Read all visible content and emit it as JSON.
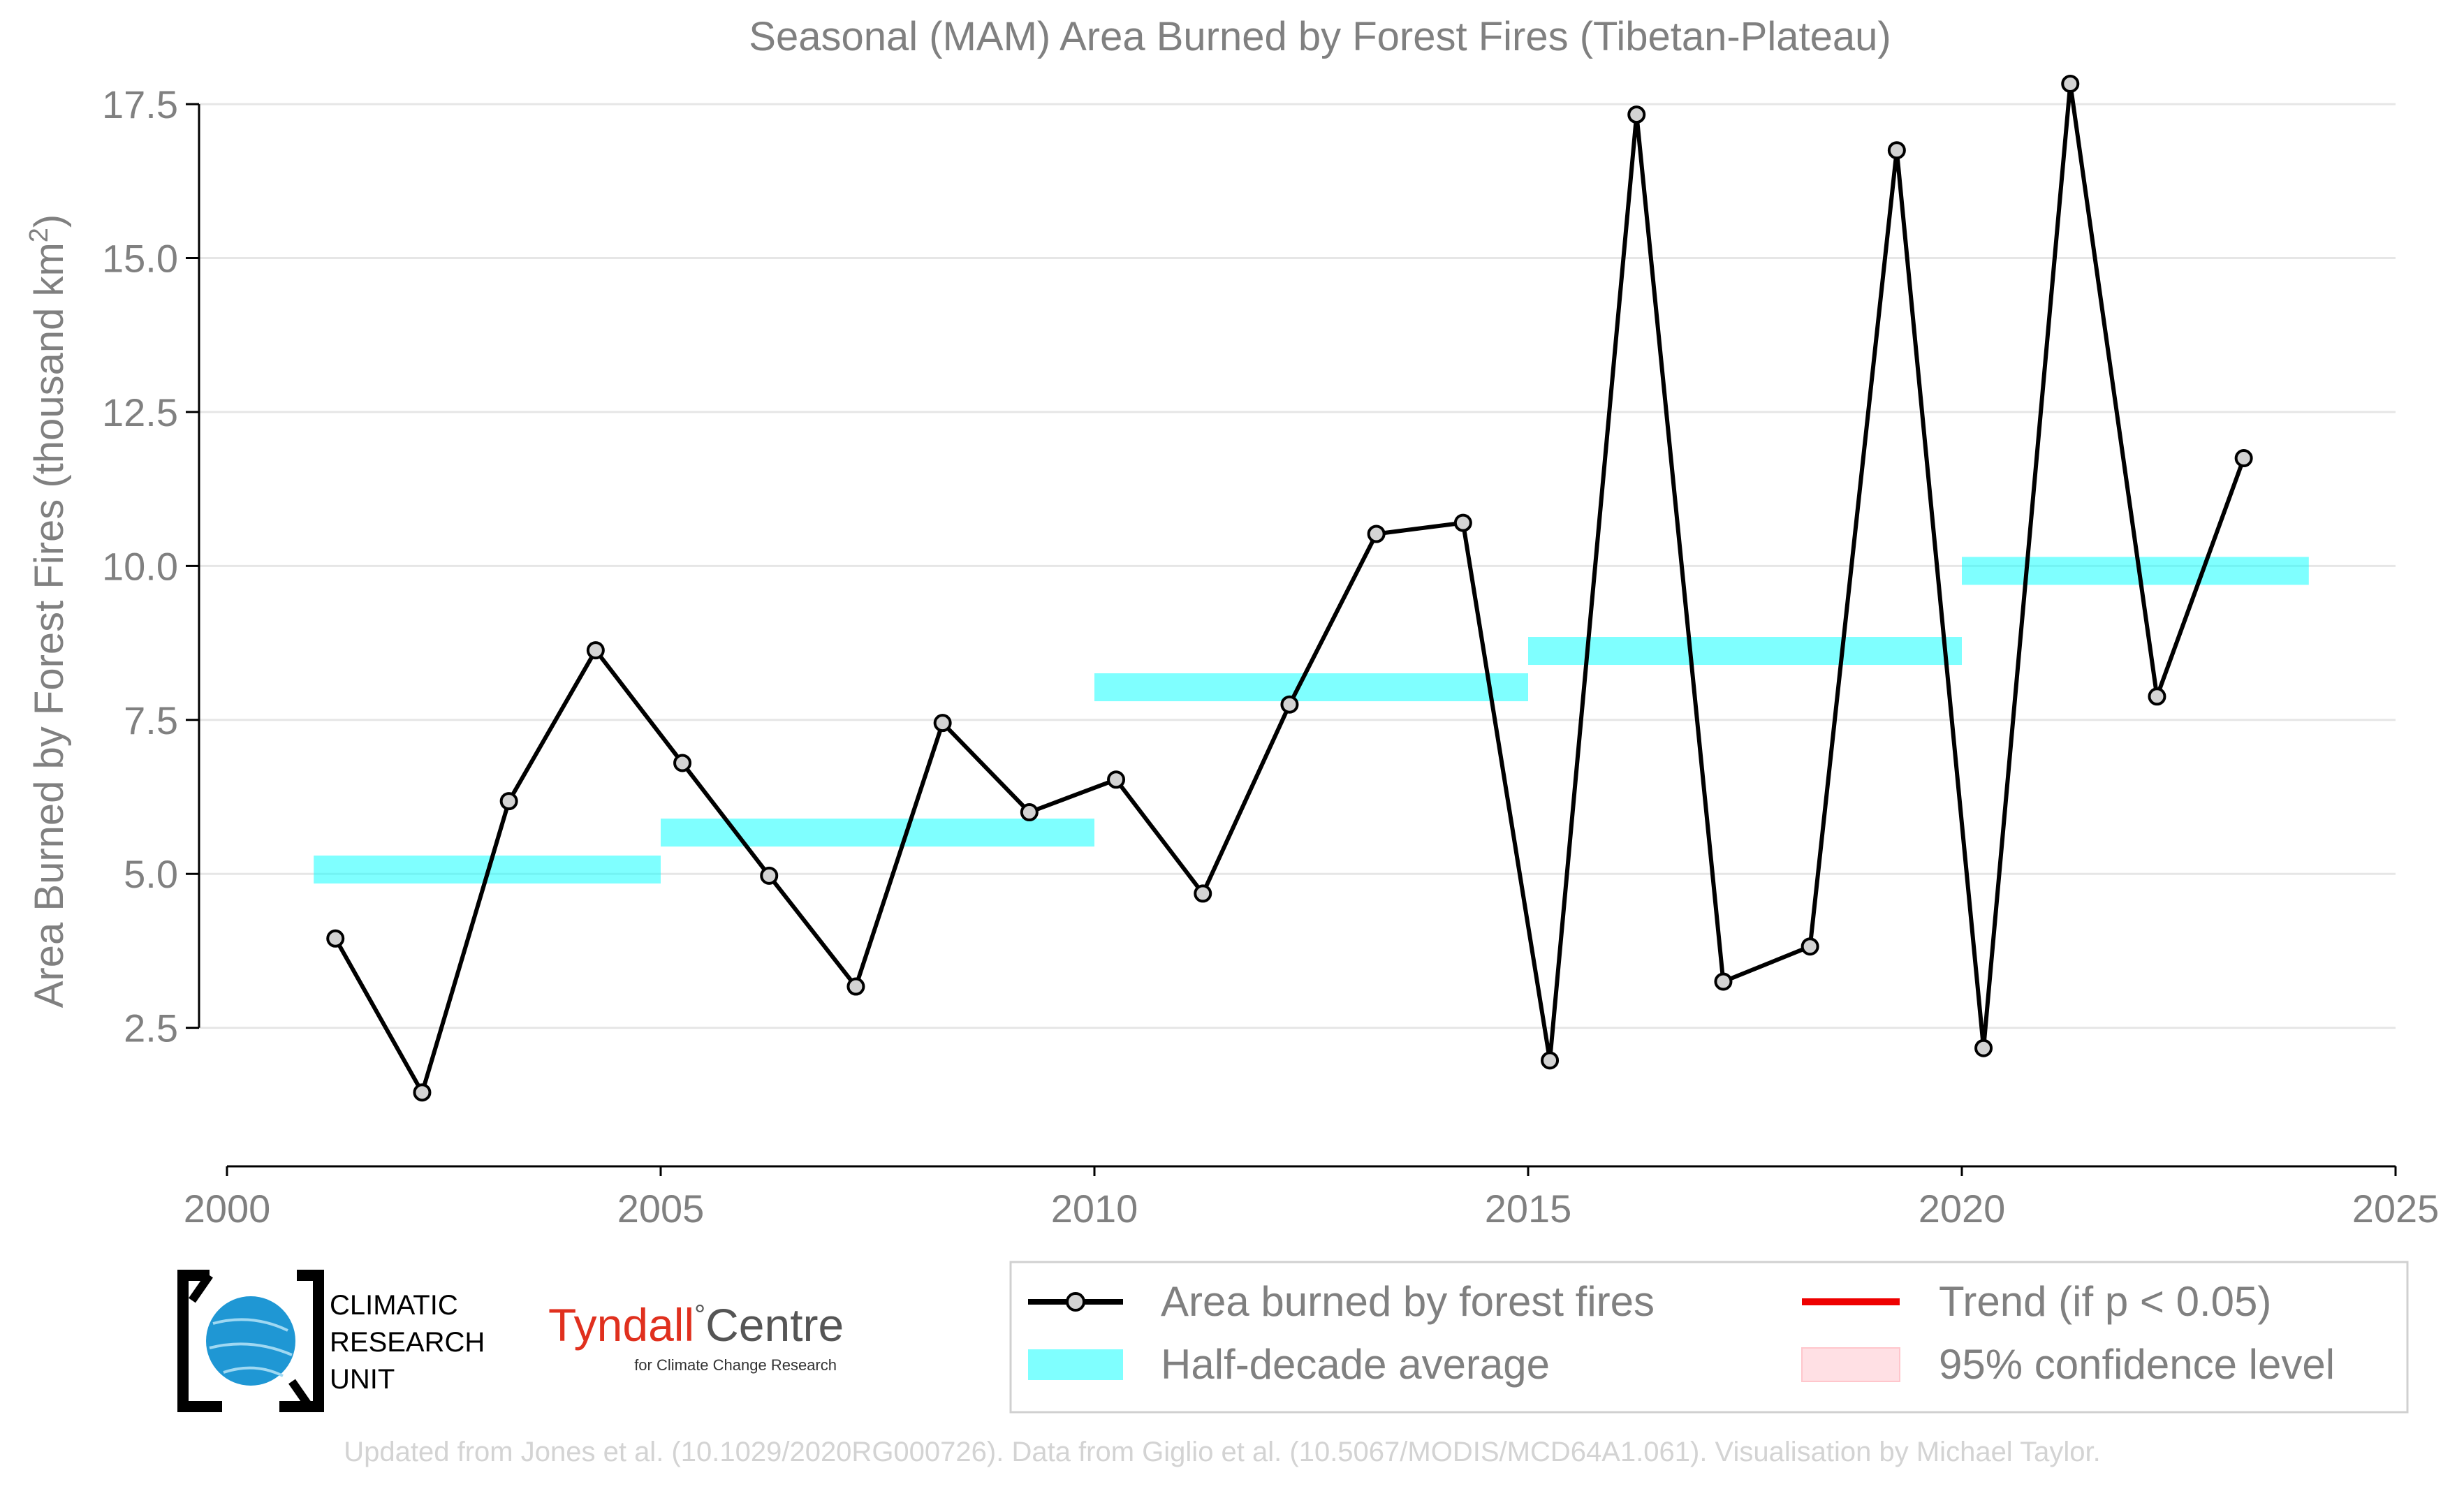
{
  "chart_data": {
    "type": "line",
    "title": "Seasonal (MAM) Area Burned by Forest Fires (Tibetan-Plateau)",
    "xlabel": "",
    "ylabel": "Area Burned by Forest Fires (thousand km²)",
    "ylabel_main": "Area Burned by Forest Fires (thousand km",
    "ylabel_sup": "2",
    "ylabel_end": ")",
    "xlim": [
      2000,
      2025
    ],
    "ylim": [
      0.25,
      18.0
    ],
    "x_ticks": [
      2000,
      2005,
      2010,
      2015,
      2020,
      2025
    ],
    "y_ticks": [
      2.5,
      5.0,
      7.5,
      10.0,
      12.5,
      15.0,
      17.5
    ],
    "y_tick_labels": [
      "2.5",
      "5.0",
      "7.5",
      "10.0",
      "12.5",
      "15.0",
      "17.5"
    ],
    "grid": "horizontal",
    "series": [
      {
        "name": "Area burned by forest fires",
        "color": "#000000",
        "x": [
          2001.25,
          2002.25,
          2003.25,
          2004.25,
          2005.25,
          2006.25,
          2007.25,
          2008.25,
          2009.25,
          2010.25,
          2011.25,
          2012.25,
          2013.25,
          2014.25,
          2015.25,
          2016.25,
          2017.25,
          2018.25,
          2019.25,
          2020.25,
          2021.25,
          2022.25,
          2023.25
        ],
        "y": [
          3.95,
          1.45,
          6.18,
          8.63,
          6.8,
          4.97,
          3.17,
          7.45,
          6.0,
          6.53,
          4.68,
          7.75,
          10.52,
          10.7,
          1.97,
          17.33,
          3.25,
          3.82,
          16.75,
          2.17,
          17.83,
          7.88,
          11.75
        ]
      }
    ],
    "half_decade_average": {
      "name": "Half-decade average",
      "color": "#00ffff",
      "segments": [
        {
          "x0": 2001,
          "x1": 2005,
          "y": 5.07
        },
        {
          "x0": 2005,
          "x1": 2010,
          "y": 5.67
        },
        {
          "x0": 2010,
          "x1": 2015,
          "y": 8.03
        },
        {
          "x0": 2015,
          "x1": 2020,
          "y": 8.62
        },
        {
          "x0": 2020,
          "x1": 2024,
          "y": 9.92
        }
      ]
    },
    "legend": {
      "placement": "bottom-right",
      "items": [
        {
          "label": "Area burned by forest fires",
          "icon": "line-marker",
          "color": "#000000"
        },
        {
          "label": "Trend (if p < 0.05)",
          "icon": "line",
          "color": "#ee0000"
        },
        {
          "label": "Half-decade average",
          "icon": "band",
          "color": "#7fffff"
        },
        {
          "label": "95% confidence level",
          "icon": "band",
          "color": "#ffe0e4"
        }
      ]
    }
  },
  "logos": {
    "cru_line1": "CLIMATIC",
    "cru_line2": "RESEARCH",
    "cru_line3": "UNIT",
    "tyndall_name": "Tyndall",
    "tyndall_degree": "°",
    "tyndall_centre": "Centre",
    "tyndall_sub": "for Climate Change Research"
  },
  "footer": "Updated from Jones et al. (10.1029/2020RG000726). Data from Giglio et al. (10.5067/MODIS/MCD64A1.061). Visualisation by Michael Taylor."
}
